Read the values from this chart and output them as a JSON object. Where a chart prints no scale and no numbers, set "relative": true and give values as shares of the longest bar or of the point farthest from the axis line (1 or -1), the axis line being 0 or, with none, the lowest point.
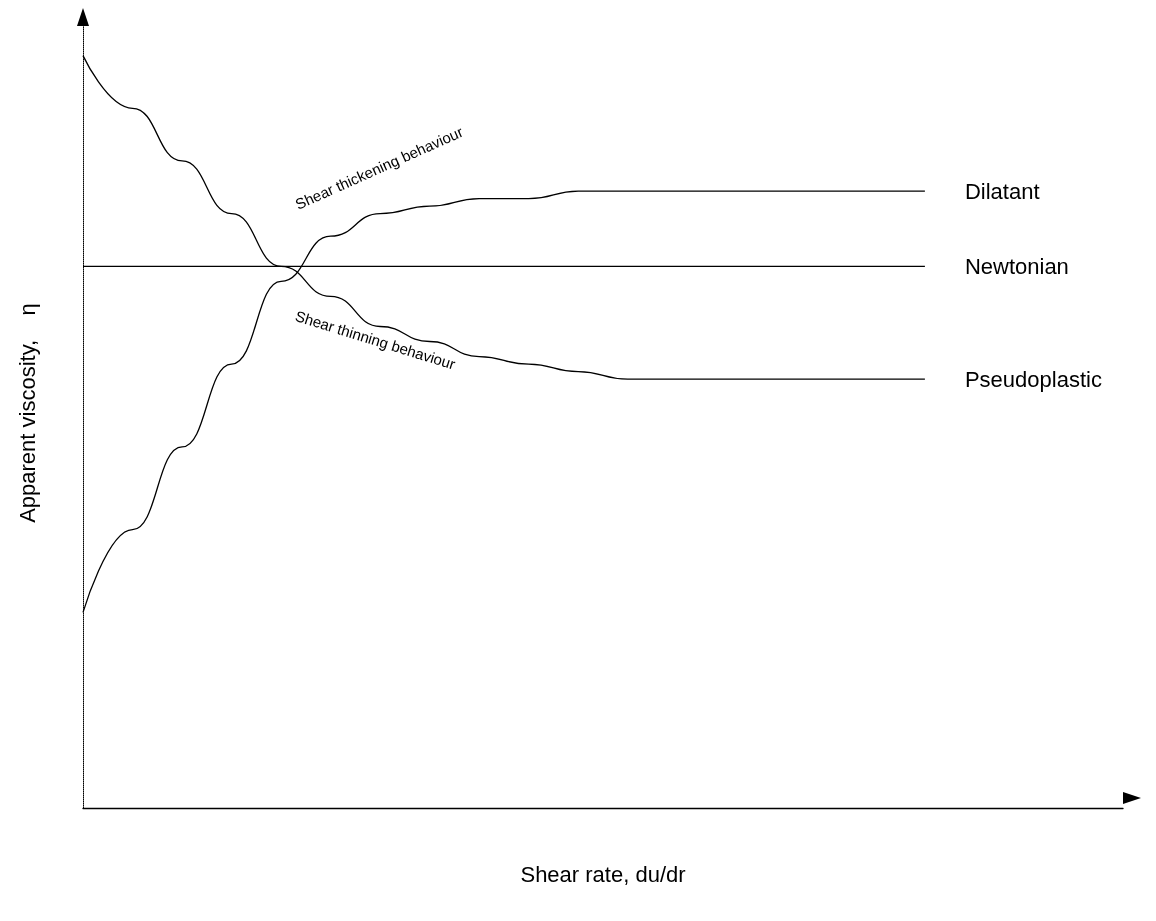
{
  "chart_data": {
    "type": "line",
    "relative": true,
    "xlabel": "Shear rate, du/dr",
    "ylabel": "Apparent viscosity,    η",
    "categories": [
      null,
      null,
      null,
      null,
      null,
      null,
      null,
      null,
      null,
      null,
      null,
      null,
      null,
      null,
      null,
      null,
      null,
      null,
      null,
      null,
      null,
      null
    ],
    "series": [
      {
        "name": "Dilatant",
        "color": "#000000",
        "values": [
          0.26,
          0.37,
          0.48,
          0.59,
          0.7,
          0.76,
          0.79,
          0.8,
          0.81,
          0.81,
          0.82,
          0.82,
          0.82,
          0.82,
          0.82,
          0.82,
          0.82,
          0.82,
          null,
          null,
          null,
          null
        ]
      },
      {
        "name": "Newtonian",
        "color": "#000000",
        "values": [
          0.72,
          0.72,
          0.72,
          0.72,
          0.72,
          0.72,
          0.72,
          0.72,
          0.72,
          0.72,
          0.72,
          0.72,
          0.72,
          0.72,
          0.72,
          0.72,
          0.72,
          0.72,
          null,
          null,
          null,
          null
        ]
      },
      {
        "name": "Pseudoplastic",
        "color": "#000000",
        "values": [
          1.0,
          0.93,
          0.86,
          0.79,
          0.72,
          0.68,
          0.64,
          0.62,
          0.6,
          0.59,
          0.58,
          0.57,
          0.57,
          0.57,
          0.57,
          0.57,
          0.57,
          0.57,
          null,
          null,
          null,
          null
        ]
      }
    ],
    "annotations": [
      "Shear thickening behaviour",
      "Shear thinning behaviour"
    ],
    "grid": false,
    "legend": false,
    "marker": "none",
    "line_style": "solid"
  }
}
